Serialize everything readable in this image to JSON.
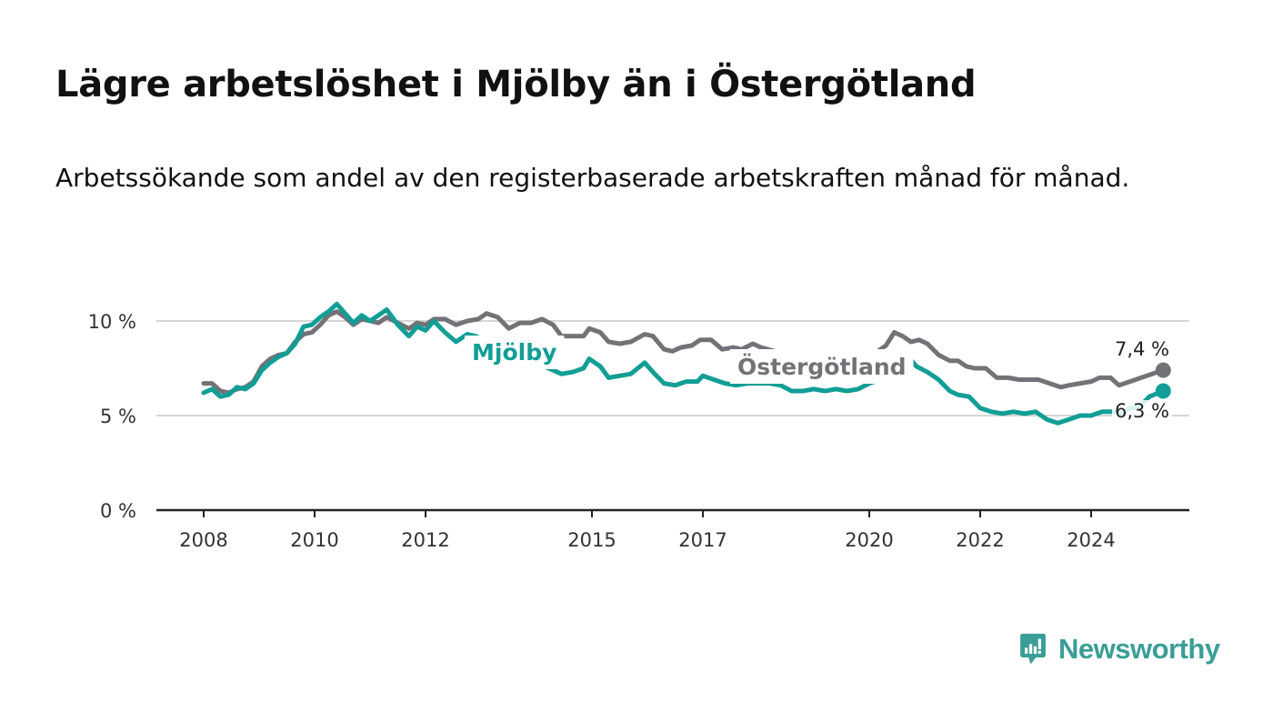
{
  "title": "Lägre arbetslöshet i Mjölby än i Östergötland",
  "subtitle": "Arbetssökande som andel av den registerbaserade arbetskraften månad för månad.",
  "brand": {
    "name": "Newsworthy",
    "color": "#3a9e96",
    "icon": "newsworthy-chart-bubble-icon"
  },
  "chart_data": {
    "type": "line",
    "xlim": [
      2008,
      2025.9
    ],
    "ylim": [
      0,
      10
    ],
    "x_ticks": [
      2008,
      2010,
      2012,
      2015,
      2017,
      2020,
      2022,
      2024
    ],
    "y_ticks": [
      {
        "value": 0,
        "label": "0 %"
      },
      {
        "value": 5,
        "label": "5 %"
      },
      {
        "value": 10,
        "label": "10 %"
      }
    ],
    "grid": true,
    "series": [
      {
        "name": "Östergötland",
        "color": "#737276",
        "end_label": "7,4 %",
        "points": [
          [
            2008.0,
            6.7
          ],
          [
            2008.15,
            6.7
          ],
          [
            2008.3,
            6.3
          ],
          [
            2008.45,
            6.2
          ],
          [
            2008.6,
            6.4
          ],
          [
            2008.75,
            6.5
          ],
          [
            2008.9,
            6.8
          ],
          [
            2009.05,
            7.6
          ],
          [
            2009.2,
            8.0
          ],
          [
            2009.35,
            8.2
          ],
          [
            2009.5,
            8.3
          ],
          [
            2009.65,
            8.9
          ],
          [
            2009.8,
            9.3
          ],
          [
            2009.95,
            9.4
          ],
          [
            2010.1,
            9.8
          ],
          [
            2010.25,
            10.3
          ],
          [
            2010.4,
            10.5
          ],
          [
            2010.55,
            10.2
          ],
          [
            2010.7,
            9.8
          ],
          [
            2010.85,
            10.1
          ],
          [
            2011.0,
            10.0
          ],
          [
            2011.15,
            9.9
          ],
          [
            2011.3,
            10.2
          ],
          [
            2011.5,
            9.9
          ],
          [
            2011.7,
            9.6
          ],
          [
            2011.85,
            9.9
          ],
          [
            2012.0,
            9.8
          ],
          [
            2012.15,
            10.1
          ],
          [
            2012.35,
            10.1
          ],
          [
            2012.55,
            9.8
          ],
          [
            2012.75,
            10.0
          ],
          [
            2012.95,
            10.1
          ],
          [
            2013.1,
            10.4
          ],
          [
            2013.3,
            10.2
          ],
          [
            2013.5,
            9.6
          ],
          [
            2013.7,
            9.9
          ],
          [
            2013.9,
            9.9
          ],
          [
            2014.1,
            10.1
          ],
          [
            2014.3,
            9.8
          ],
          [
            2014.45,
            9.2
          ],
          [
            2014.65,
            9.2
          ],
          [
            2014.85,
            9.2
          ],
          [
            2014.95,
            9.6
          ],
          [
            2015.15,
            9.4
          ],
          [
            2015.3,
            8.9
          ],
          [
            2015.5,
            8.8
          ],
          [
            2015.7,
            8.9
          ],
          [
            2015.95,
            9.3
          ],
          [
            2016.1,
            9.2
          ],
          [
            2016.3,
            8.5
          ],
          [
            2016.45,
            8.4
          ],
          [
            2016.6,
            8.6
          ],
          [
            2016.8,
            8.7
          ],
          [
            2016.95,
            9.0
          ],
          [
            2017.15,
            9.0
          ],
          [
            2017.35,
            8.5
          ],
          [
            2017.55,
            8.6
          ],
          [
            2017.7,
            8.5
          ],
          [
            2017.9,
            8.8
          ],
          [
            2018.05,
            8.6
          ],
          [
            2018.3,
            8.4
          ],
          [
            2018.6,
            8.2
          ],
          [
            2018.9,
            7.9
          ],
          [
            2019.2,
            7.7
          ],
          [
            2019.5,
            7.7
          ],
          [
            2019.8,
            8.1
          ],
          [
            2020.0,
            8.3
          ],
          [
            2020.15,
            8.4
          ],
          [
            2020.3,
            8.7
          ],
          [
            2020.45,
            9.4
          ],
          [
            2020.6,
            9.2
          ],
          [
            2020.75,
            8.9
          ],
          [
            2020.9,
            9.0
          ],
          [
            2021.05,
            8.8
          ],
          [
            2021.25,
            8.2
          ],
          [
            2021.45,
            7.9
          ],
          [
            2021.6,
            7.9
          ],
          [
            2021.75,
            7.6
          ],
          [
            2021.9,
            7.5
          ],
          [
            2022.1,
            7.5
          ],
          [
            2022.3,
            7.0
          ],
          [
            2022.5,
            7.0
          ],
          [
            2022.7,
            6.9
          ],
          [
            2022.9,
            6.9
          ],
          [
            2023.05,
            6.9
          ],
          [
            2023.25,
            6.7
          ],
          [
            2023.45,
            6.5
          ],
          [
            2023.6,
            6.6
          ],
          [
            2023.8,
            6.7
          ],
          [
            2024.0,
            6.8
          ],
          [
            2024.15,
            7.0
          ],
          [
            2024.35,
            7.0
          ],
          [
            2024.5,
            6.6
          ],
          [
            2024.7,
            6.8
          ],
          [
            2024.9,
            7.0
          ],
          [
            2025.1,
            7.2
          ],
          [
            2025.3,
            7.4
          ]
        ]
      },
      {
        "name": "Mjölby",
        "color": "#119e96",
        "end_label": "6,3 %",
        "points": [
          [
            2008.0,
            6.2
          ],
          [
            2008.15,
            6.4
          ],
          [
            2008.3,
            6.0
          ],
          [
            2008.45,
            6.1
          ],
          [
            2008.6,
            6.5
          ],
          [
            2008.75,
            6.4
          ],
          [
            2008.9,
            6.7
          ],
          [
            2009.05,
            7.4
          ],
          [
            2009.2,
            7.8
          ],
          [
            2009.35,
            8.1
          ],
          [
            2009.5,
            8.3
          ],
          [
            2009.65,
            8.8
          ],
          [
            2009.8,
            9.7
          ],
          [
            2009.95,
            9.8
          ],
          [
            2010.1,
            10.2
          ],
          [
            2010.25,
            10.5
          ],
          [
            2010.4,
            10.9
          ],
          [
            2010.55,
            10.4
          ],
          [
            2010.7,
            9.9
          ],
          [
            2010.85,
            10.3
          ],
          [
            2011.0,
            10.0
          ],
          [
            2011.15,
            10.3
          ],
          [
            2011.3,
            10.6
          ],
          [
            2011.5,
            9.8
          ],
          [
            2011.7,
            9.2
          ],
          [
            2011.85,
            9.7
          ],
          [
            2012.0,
            9.5
          ],
          [
            2012.15,
            10.0
          ],
          [
            2012.35,
            9.4
          ],
          [
            2012.55,
            8.9
          ],
          [
            2012.75,
            9.3
          ],
          [
            2012.9,
            9.2
          ],
          [
            2014.45,
            7.2
          ],
          [
            2014.65,
            7.3
          ],
          [
            2014.85,
            7.5
          ],
          [
            2014.95,
            8.0
          ],
          [
            2015.15,
            7.6
          ],
          [
            2015.3,
            7.0
          ],
          [
            2015.5,
            7.1
          ],
          [
            2015.7,
            7.2
          ],
          [
            2015.95,
            7.8
          ],
          [
            2016.1,
            7.3
          ],
          [
            2016.3,
            6.7
          ],
          [
            2016.5,
            6.6
          ],
          [
            2016.7,
            6.8
          ],
          [
            2016.9,
            6.8
          ],
          [
            2017.0,
            7.1
          ],
          [
            2017.2,
            6.9
          ],
          [
            2017.4,
            6.7
          ],
          [
            2017.6,
            6.6
          ],
          [
            2017.8,
            6.7
          ],
          [
            2018.0,
            6.7
          ],
          [
            2018.2,
            6.7
          ],
          [
            2018.4,
            6.6
          ],
          [
            2018.6,
            6.3
          ],
          [
            2018.8,
            6.3
          ],
          [
            2019.0,
            6.4
          ],
          [
            2019.2,
            6.3
          ],
          [
            2019.4,
            6.4
          ],
          [
            2019.6,
            6.3
          ],
          [
            2019.8,
            6.4
          ],
          [
            2020.0,
            6.7
          ],
          [
            2020.2,
            6.9
          ],
          [
            2020.45,
            7.1
          ],
          [
            2020.65,
            8.3
          ],
          [
            2020.85,
            7.6
          ],
          [
            2021.05,
            7.3
          ],
          [
            2021.25,
            6.9
          ],
          [
            2021.45,
            6.3
          ],
          [
            2021.6,
            6.1
          ],
          [
            2021.8,
            6.0
          ],
          [
            2022.0,
            5.4
          ],
          [
            2022.2,
            5.2
          ],
          [
            2022.4,
            5.1
          ],
          [
            2022.6,
            5.2
          ],
          [
            2022.8,
            5.1
          ],
          [
            2023.0,
            5.2
          ],
          [
            2023.2,
            4.8
          ],
          [
            2023.4,
            4.6
          ],
          [
            2023.6,
            4.8
          ],
          [
            2023.8,
            5.0
          ],
          [
            2024.0,
            5.0
          ],
          [
            2024.2,
            5.2
          ],
          [
            2024.4,
            5.2
          ],
          [
            2024.55,
            5.1
          ],
          [
            2024.7,
            5.4
          ],
          [
            2024.85,
            5.4
          ],
          [
            2025.05,
            6.0
          ],
          [
            2025.3,
            6.3
          ]
        ]
      }
    ]
  }
}
